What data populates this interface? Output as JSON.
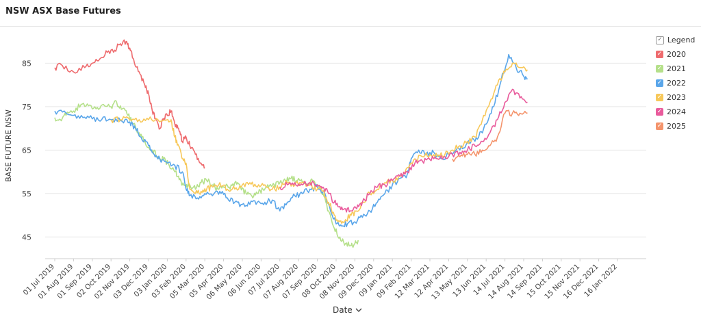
{
  "title": "NSW ASX Base Futures",
  "legend": {
    "header": "Legend",
    "items": [
      {
        "label": "2020",
        "color": "#ee6b6e"
      },
      {
        "label": "2021",
        "color": "#b5e08a"
      },
      {
        "label": "2022",
        "color": "#5aa6ea"
      },
      {
        "label": "2023",
        "color": "#f7c85a"
      },
      {
        "label": "2024",
        "color": "#e95b9c"
      },
      {
        "label": "2025",
        "color": "#f4946c"
      }
    ]
  },
  "xaxis_control": {
    "label": "Date",
    "icon": "chevron-down-icon"
  },
  "chart_data": {
    "type": "line",
    "title": "NSW ASX Base Futures",
    "xlabel": "Date",
    "ylabel": "BASE FUTURE NSW",
    "ylim": [
      40,
      92
    ],
    "yticks": [
      45,
      55,
      65,
      75,
      85
    ],
    "grid": true,
    "legend_position": "right",
    "x_ticks": [
      "01 Jul 2019",
      "01 Aug 2019",
      "01 Sep 2019",
      "02 Oct 2019",
      "02 Nov 2019",
      "03 Dec 2019",
      "03 Jan 2020",
      "03 Feb 2020",
      "05 Mar 2020",
      "05 Apr 2020",
      "06 May 2020",
      "06 Jun 2020",
      "07 Jul 2020",
      "07 Aug 2020",
      "07 Sep 2020",
      "08 Oct 2020",
      "08 Nov 2020",
      "09 Dec 2020",
      "09 Jan 2021",
      "09 Feb 2021",
      "12 Mar 2021",
      "12 Apr 2021",
      "13 May 2021",
      "13 Jun 2021",
      "14 Jul 2021",
      "14 Aug 2021",
      "14 Sep 2021",
      "15 Oct 2021",
      "15 Nov 2021",
      "16 Dec 2021",
      "16 Jan 2022"
    ],
    "series": [
      {
        "name": "2020",
        "color": "#ee6b6e",
        "points": [
          [
            0,
            84
          ],
          [
            0.4,
            84.5
          ],
          [
            1,
            83
          ],
          [
            1.6,
            84
          ],
          [
            2,
            85
          ],
          [
            2.4,
            86
          ],
          [
            2.8,
            87.5
          ],
          [
            3.2,
            88
          ],
          [
            3.5,
            89.5
          ],
          [
            3.8,
            90
          ],
          [
            4,
            88.5
          ],
          [
            4.2,
            86
          ],
          [
            4.5,
            83
          ],
          [
            4.8,
            80
          ],
          [
            5,
            78
          ],
          [
            5.2,
            74
          ],
          [
            5.4,
            72
          ],
          [
            5.6,
            70
          ],
          [
            5.8,
            72
          ],
          [
            6,
            73
          ],
          [
            6.2,
            74
          ],
          [
            6.4,
            71
          ],
          [
            6.6,
            70
          ],
          [
            6.8,
            67
          ],
          [
            7,
            68
          ],
          [
            7.2,
            66
          ],
          [
            7.5,
            64
          ],
          [
            7.8,
            62
          ],
          [
            8.0,
            61
          ]
        ]
      },
      {
        "name": "2021",
        "color": "#b5e08a",
        "points": [
          [
            0,
            72.5
          ],
          [
            0.3,
            72
          ],
          [
            0.6,
            73
          ],
          [
            1,
            74
          ],
          [
            1.4,
            75.5
          ],
          [
            1.8,
            75.2
          ],
          [
            2.2,
            74.5
          ],
          [
            2.6,
            75.5
          ],
          [
            3.0,
            75
          ],
          [
            3.3,
            76
          ],
          [
            3.6,
            74.5
          ],
          [
            3.9,
            73
          ],
          [
            4.2,
            71
          ],
          [
            4.5,
            69
          ],
          [
            4.8,
            67
          ],
          [
            5.2,
            65
          ],
          [
            5.5,
            63.5
          ],
          [
            5.8,
            63
          ],
          [
            6.1,
            61.5
          ],
          [
            6.4,
            60
          ],
          [
            6.6,
            59
          ],
          [
            6.8,
            57
          ],
          [
            7.0,
            56.5
          ],
          [
            7.2,
            57
          ],
          [
            7.5,
            56
          ],
          [
            7.8,
            57.5
          ],
          [
            8.1,
            58
          ],
          [
            8.4,
            57
          ],
          [
            8.7,
            56
          ],
          [
            9.0,
            56.5
          ],
          [
            9.3,
            56.5
          ],
          [
            9.6,
            57.5
          ],
          [
            9.9,
            56.5
          ],
          [
            10.2,
            55
          ],
          [
            10.5,
            54.5
          ],
          [
            10.8,
            55
          ],
          [
            11.1,
            56
          ],
          [
            11.4,
            56.5
          ],
          [
            11.7,
            57
          ],
          [
            12.0,
            57.5
          ],
          [
            12.3,
            58
          ],
          [
            12.6,
            58.5
          ],
          [
            12.9,
            58
          ],
          [
            13.2,
            57.5
          ],
          [
            13.5,
            57
          ],
          [
            13.8,
            58
          ],
          [
            14.1,
            56.5
          ],
          [
            14.3,
            55
          ],
          [
            14.6,
            51
          ],
          [
            14.9,
            47
          ],
          [
            15.2,
            45
          ],
          [
            15.5,
            43.5
          ],
          [
            15.8,
            43
          ],
          [
            16.0,
            43.5
          ],
          [
            16.2,
            44
          ]
        ]
      },
      {
        "name": "2022",
        "color": "#5aa6ea",
        "points": [
          [
            0,
            74
          ],
          [
            0.5,
            74
          ],
          [
            1,
            73
          ],
          [
            1.5,
            72.5
          ],
          [
            2,
            72.2
          ],
          [
            2.5,
            72
          ],
          [
            3,
            72
          ],
          [
            3.5,
            71.8
          ],
          [
            4,
            71.5
          ],
          [
            4.3,
            70
          ],
          [
            4.6,
            68
          ],
          [
            5,
            66
          ],
          [
            5.3,
            64
          ],
          [
            5.6,
            63
          ],
          [
            6.0,
            62
          ],
          [
            6.4,
            61.5
          ],
          [
            6.8,
            60
          ],
          [
            7.0,
            56
          ],
          [
            7.2,
            54.5
          ],
          [
            7.6,
            54
          ],
          [
            8.0,
            55
          ],
          [
            8.4,
            54.5
          ],
          [
            8.8,
            55.5
          ],
          [
            9.2,
            54
          ],
          [
            9.6,
            53
          ],
          [
            10.0,
            52.5
          ],
          [
            10.4,
            52.5
          ],
          [
            10.8,
            53
          ],
          [
            11.2,
            53
          ],
          [
            11.6,
            53.5
          ],
          [
            12.0,
            51
          ],
          [
            12.4,
            53
          ],
          [
            12.8,
            54.5
          ],
          [
            13.2,
            55
          ],
          [
            13.6,
            56
          ],
          [
            14.0,
            56.5
          ],
          [
            14.4,
            55
          ],
          [
            14.7,
            51
          ],
          [
            15.0,
            48
          ],
          [
            15.3,
            47.5
          ],
          [
            15.6,
            48
          ],
          [
            16.0,
            48.5
          ],
          [
            16.4,
            49.5
          ],
          [
            16.8,
            51
          ],
          [
            17.2,
            53
          ],
          [
            17.6,
            55
          ],
          [
            18.0,
            57
          ],
          [
            18.4,
            58.5
          ],
          [
            18.8,
            59.5
          ],
          [
            19.0,
            63
          ],
          [
            19.4,
            65
          ],
          [
            19.8,
            64
          ],
          [
            20.2,
            64.5
          ],
          [
            20.6,
            63
          ],
          [
            21.0,
            64
          ],
          [
            21.4,
            65
          ],
          [
            21.8,
            65.5
          ],
          [
            22.2,
            67
          ],
          [
            22.6,
            68
          ],
          [
            23.0,
            71
          ],
          [
            23.4,
            75
          ],
          [
            23.8,
            81
          ],
          [
            24.2,
            87
          ],
          [
            24.6,
            84
          ],
          [
            25.0,
            82
          ],
          [
            25.2,
            81.5
          ]
        ]
      },
      {
        "name": "2023",
        "color": "#f7c85a",
        "points": [
          [
            3,
            72
          ],
          [
            3.5,
            72
          ],
          [
            4,
            72
          ],
          [
            4.5,
            72
          ],
          [
            5,
            72
          ],
          [
            5.5,
            72
          ],
          [
            6,
            72
          ],
          [
            6.2,
            72
          ],
          [
            6.4,
            68
          ],
          [
            6.6,
            66
          ],
          [
            6.8,
            63
          ],
          [
            7,
            62
          ],
          [
            7.2,
            56
          ],
          [
            7.5,
            55
          ],
          [
            7.8,
            55.5
          ],
          [
            8.1,
            56
          ],
          [
            8.4,
            56.5
          ],
          [
            8.8,
            57.5
          ],
          [
            9.2,
            56
          ],
          [
            9.6,
            56
          ],
          [
            10.0,
            57
          ],
          [
            10.4,
            57.5
          ],
          [
            10.8,
            56.5
          ],
          [
            11.2,
            57
          ],
          [
            11.6,
            56
          ],
          [
            12.0,
            56.5
          ],
          [
            12.4,
            57.5
          ],
          [
            12.8,
            57
          ],
          [
            13.2,
            57.5
          ],
          [
            13.6,
            57
          ],
          [
            14.0,
            56
          ],
          [
            14.3,
            55.5
          ],
          [
            14.6,
            53
          ],
          [
            14.9,
            50
          ],
          [
            15.2,
            48.5
          ],
          [
            15.5,
            49
          ],
          [
            15.8,
            50
          ],
          [
            16.1,
            51
          ],
          [
            16.4,
            53
          ],
          [
            16.8,
            55
          ],
          [
            17.2,
            56
          ],
          [
            17.6,
            57.5
          ],
          [
            18.0,
            58
          ],
          [
            18.4,
            59
          ],
          [
            18.8,
            61
          ],
          [
            19.2,
            63
          ],
          [
            19.6,
            63.5
          ],
          [
            20.0,
            64
          ],
          [
            20.4,
            63.5
          ],
          [
            20.8,
            64
          ],
          [
            21.2,
            65
          ],
          [
            21.6,
            66
          ],
          [
            22.0,
            67
          ],
          [
            22.4,
            68
          ],
          [
            22.8,
            72
          ],
          [
            23.2,
            76
          ],
          [
            23.6,
            80
          ],
          [
            24.0,
            83
          ],
          [
            24.4,
            85
          ],
          [
            24.8,
            84
          ],
          [
            25.2,
            83.5
          ]
        ]
      },
      {
        "name": "2024",
        "color": "#e95b9c",
        "points": [
          [
            12.0,
            56.5
          ],
          [
            12.4,
            57
          ],
          [
            12.8,
            57.5
          ],
          [
            13.2,
            57
          ],
          [
            13.6,
            57.5
          ],
          [
            14.0,
            57
          ],
          [
            14.3,
            56.5
          ],
          [
            14.6,
            55
          ],
          [
            14.9,
            53
          ],
          [
            15.2,
            52
          ],
          [
            15.5,
            51.5
          ],
          [
            15.8,
            51
          ],
          [
            16.1,
            51.5
          ],
          [
            16.4,
            53
          ],
          [
            16.8,
            55
          ],
          [
            17.2,
            56.5
          ],
          [
            17.6,
            57
          ],
          [
            18.0,
            58
          ],
          [
            18.4,
            59
          ],
          [
            18.8,
            60
          ],
          [
            19.2,
            62
          ],
          [
            19.6,
            62.5
          ],
          [
            20.0,
            62.8
          ],
          [
            20.4,
            63
          ],
          [
            20.8,
            63.5
          ],
          [
            21.2,
            64
          ],
          [
            21.6,
            64.5
          ],
          [
            22.0,
            65
          ],
          [
            22.4,
            66
          ],
          [
            22.8,
            67
          ],
          [
            23.2,
            69
          ],
          [
            23.6,
            72
          ],
          [
            24.0,
            76
          ],
          [
            24.4,
            79
          ],
          [
            24.8,
            77
          ],
          [
            25.2,
            76
          ]
        ]
      },
      {
        "name": "2025",
        "color": "#f4946c",
        "points": [
          [
            21.2,
            63
          ],
          [
            21.6,
            63.5
          ],
          [
            22.0,
            64
          ],
          [
            22.4,
            64
          ],
          [
            22.8,
            65
          ],
          [
            23.2,
            66
          ],
          [
            23.6,
            68
          ],
          [
            24.0,
            73.5
          ],
          [
            24.4,
            73.5
          ],
          [
            24.8,
            73.5
          ],
          [
            25.2,
            73.5
          ]
        ]
      }
    ]
  }
}
